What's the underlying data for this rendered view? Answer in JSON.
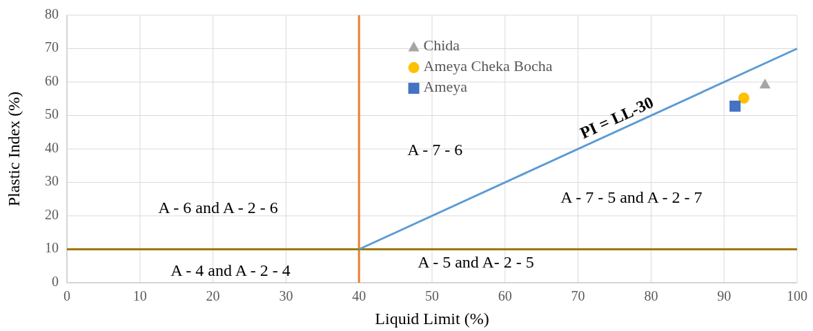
{
  "chart_data": {
    "type": "scatter",
    "xlabel": "Liquid Limit (%)",
    "ylabel": "Plastic Index (%)",
    "xlim": [
      0,
      100
    ],
    "xticks": [
      0,
      10,
      20,
      30,
      40,
      50,
      60,
      70,
      80,
      90,
      100
    ],
    "ylim": [
      0,
      80
    ],
    "yticks": [
      0,
      10,
      20,
      30,
      40,
      50,
      60,
      70,
      80
    ],
    "grid": true,
    "legend": "top",
    "series": [
      {
        "name": "Chida",
        "color": "#a5a5a5",
        "marker": "triangle",
        "x": [
          95.6
        ],
        "values": [
          59.4
        ]
      },
      {
        "name": "Ameya Cheka Bocha",
        "color": "#ffc000",
        "marker": "circle",
        "x": [
          92.7
        ],
        "values": [
          55.2
        ]
      },
      {
        "name": "Ameya",
        "color": "#4472c4",
        "marker": "square",
        "x": [
          91.5
        ],
        "values": [
          52.8
        ]
      },
      {
        "name": "PI = LL-30",
        "type": "line",
        "color": "#5b9bd5",
        "x": [
          40,
          100
        ],
        "values": [
          10,
          70
        ]
      }
    ],
    "ref_lines": [
      {
        "axis": "x",
        "value": 40,
        "color": "#ed7d31"
      },
      {
        "axis": "y",
        "value": 10,
        "color": "#9c7800"
      }
    ],
    "annotations": [
      "A - 7 - 6",
      "A - 6 and A - 2 - 6",
      "A - 7 - 5 and A - 2 - 7",
      "A - 4 and A - 2 - 4",
      "A - 5 and A- 2 - 5"
    ]
  }
}
